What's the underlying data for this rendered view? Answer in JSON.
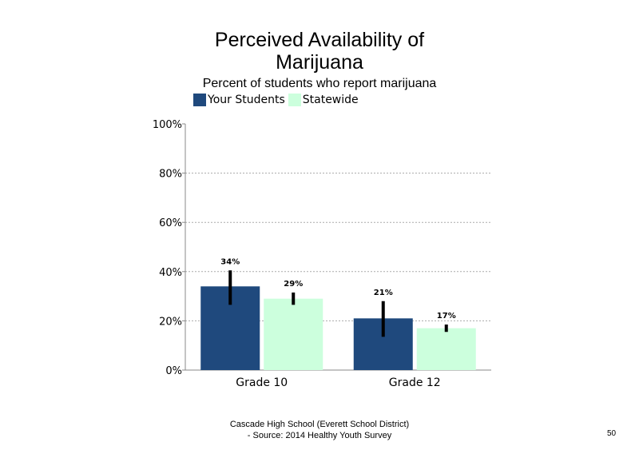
{
  "chart_data": {
    "type": "bar",
    "title_line1": "Perceived Availability of",
    "title_line2": "Marijuana",
    "subtitle": "Percent of students  who report marijuana",
    "categories": [
      "Grade 10",
      "Grade 12"
    ],
    "series": [
      {
        "name": "Your Students",
        "color": "#1f497d",
        "values": [
          34,
          21
        ],
        "labels": [
          "34%",
          "21%"
        ],
        "err_low": [
          26.5,
          13.5
        ],
        "err_high": [
          40.5,
          28
        ]
      },
      {
        "name": "Statewide",
        "color": "#ccffdd",
        "values": [
          29,
          17
        ],
        "labels": [
          "29%",
          "17%"
        ],
        "err_low": [
          26.5,
          15.5
        ],
        "err_high": [
          31.5,
          18.5
        ]
      }
    ],
    "yticks": [
      "0%",
      "20%",
      "40%",
      "60%",
      "80%",
      "100%"
    ],
    "ylim": [
      0,
      100
    ],
    "grid": "dotted horizontal",
    "legend_position": "top-left"
  },
  "footer": {
    "line1": "Cascade High  School (Everett School District)",
    "line2": "- Source: 2014 Healthy  Youth Survey"
  },
  "page_number": "50"
}
